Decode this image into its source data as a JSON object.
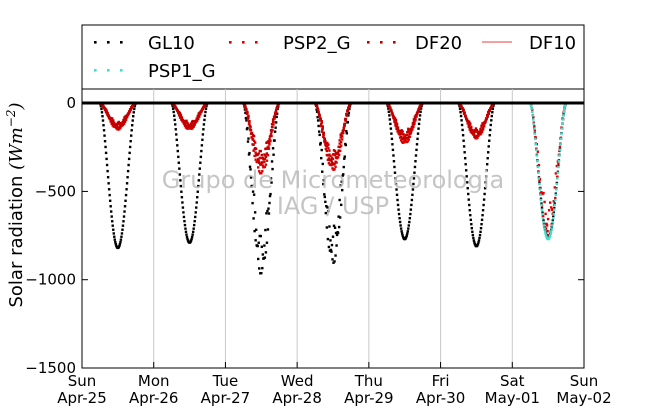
{
  "chart_data": {
    "type": "scatter",
    "title": "",
    "ylabel": "Solar radiation",
    "ylabel_unit": "(Wm^{-2})",
    "ylim": [
      -1500,
      80
    ],
    "yticks": [
      0,
      -500,
      -1000,
      -1500
    ],
    "ytick_labels": [
      "0",
      "−500",
      "−1000",
      "−1500"
    ],
    "xlim": [
      "2015-04-25",
      "2015-05-02"
    ],
    "xtick_labels": [
      {
        "day": "Sun",
        "date": "Apr-25"
      },
      {
        "day": "Mon",
        "date": "Apr-26"
      },
      {
        "day": "Tue",
        "date": "Apr-27"
      },
      {
        "day": "Wed",
        "date": "Apr-28"
      },
      {
        "day": "Thu",
        "date": "Apr-29"
      },
      {
        "day": "Fri",
        "date": "Apr-30"
      },
      {
        "day": "Sat",
        "date": "May-01"
      },
      {
        "day": "Sun",
        "date": "May-02"
      }
    ],
    "grid": "vertical",
    "legend_position": "top",
    "watermark": [
      "Grupo de Micrometeorologia",
      "IAG / USP"
    ],
    "series": [
      {
        "name": "GL10",
        "color": "#000000",
        "marker": "dot",
        "daily_min": [
          {
            "date": "2015-04-25",
            "value": -820
          },
          {
            "date": "2015-04-26",
            "value": -790
          },
          {
            "date": "2015-04-27",
            "value": -970
          },
          {
            "date": "2015-04-28",
            "value": -910
          },
          {
            "date": "2015-04-29",
            "value": -770
          },
          {
            "date": "2015-04-30",
            "value": -810
          },
          {
            "date": "2015-05-01",
            "value": -760
          }
        ]
      },
      {
        "name": "PSP2_G",
        "color": "#e00000",
        "marker": "dot",
        "daily_min": [
          {
            "date": "2015-04-25",
            "value": -150
          },
          {
            "date": "2015-04-26",
            "value": -150
          },
          {
            "date": "2015-04-27",
            "value": -400
          },
          {
            "date": "2015-04-28",
            "value": -380
          },
          {
            "date": "2015-04-29",
            "value": -230
          },
          {
            "date": "2015-04-30",
            "value": -200
          },
          {
            "date": "2015-05-01",
            "value": -760
          }
        ]
      },
      {
        "name": "DF20",
        "color": "#c00000",
        "marker": "dot",
        "daily_min": [
          {
            "date": "2015-04-25",
            "value": -140
          },
          {
            "date": "2015-04-26",
            "value": -140
          },
          {
            "date": "2015-04-27",
            "value": -350
          },
          {
            "date": "2015-04-28",
            "value": -350
          },
          {
            "date": "2015-04-29",
            "value": -210
          },
          {
            "date": "2015-04-30",
            "value": -190
          }
        ]
      },
      {
        "name": "DF10",
        "color": "#f08080",
        "marker": "line",
        "values": []
      },
      {
        "name": "PSP1_G",
        "color": "#40e0d0",
        "marker": "dot",
        "daily_min": [
          {
            "date": "2015-05-01",
            "value": -770
          }
        ]
      }
    ]
  }
}
